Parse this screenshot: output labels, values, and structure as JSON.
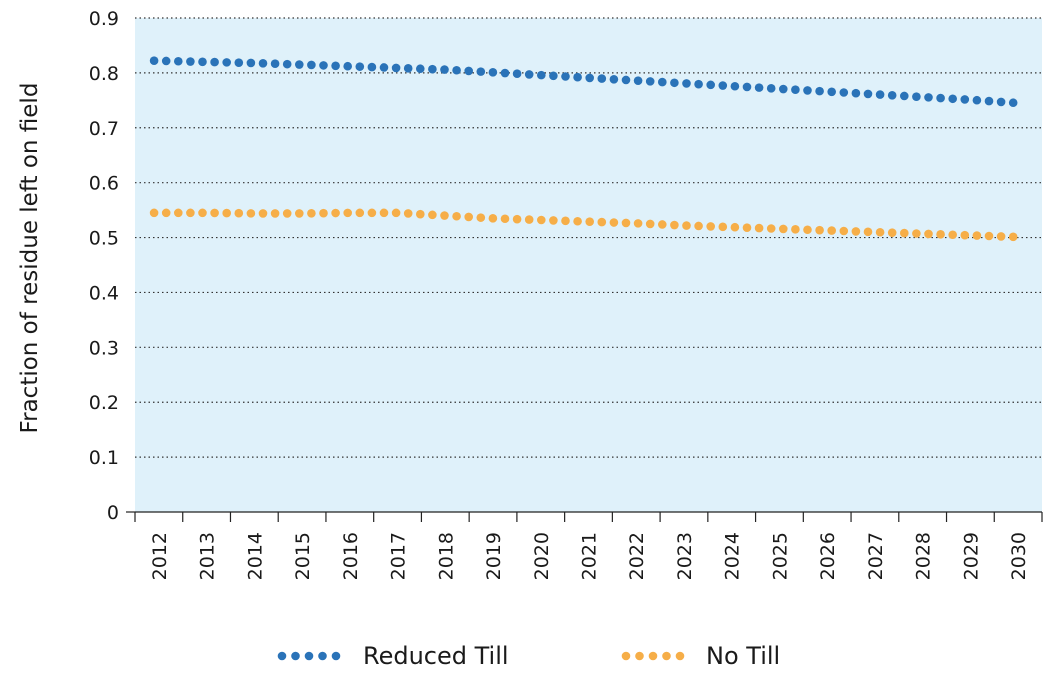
{
  "chart_data": {
    "type": "scatter",
    "title": "",
    "xlabel": "",
    "ylabel": "Fraction of residue left on field",
    "categories": [
      "2012",
      "2013",
      "2014",
      "2015",
      "2016",
      "2017",
      "2018",
      "2019",
      "2020",
      "2021",
      "2022",
      "2023",
      "2024",
      "2025",
      "2026",
      "2027",
      "2028",
      "2029",
      "2030"
    ],
    "y_ticks": [
      "0",
      "0.1",
      "0.2",
      "0.3",
      "0.4",
      "0.5",
      "0.6",
      "0.7",
      "0.8",
      "0.9"
    ],
    "ylim": [
      0,
      0.9
    ],
    "grid": "horizontal dotted",
    "legend_position": "bottom",
    "plot_background": "#dff1fa",
    "series": [
      {
        "name": "Reduced Till",
        "color": "#2a73b8",
        "values": [
          0.822,
          0.82,
          0.818,
          0.815,
          0.812,
          0.809,
          0.806,
          0.801,
          0.796,
          0.791,
          0.786,
          0.781,
          0.776,
          0.771,
          0.766,
          0.761,
          0.756,
          0.751,
          0.745
        ]
      },
      {
        "name": "No Till",
        "color": "#f6ae48",
        "values": [
          0.545,
          0.545,
          0.544,
          0.544,
          0.545,
          0.545,
          0.54,
          0.535,
          0.532,
          0.529,
          0.526,
          0.522,
          0.519,
          0.516,
          0.513,
          0.51,
          0.507,
          0.504,
          0.501
        ]
      }
    ]
  }
}
